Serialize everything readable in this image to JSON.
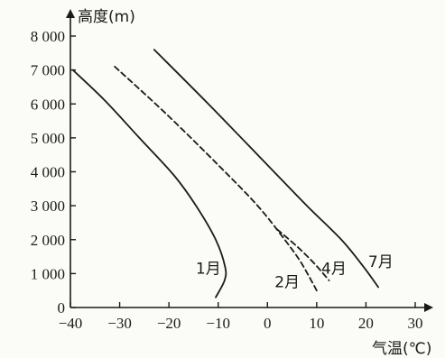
{
  "chart_data": {
    "type": "line",
    "title": "",
    "xlabel": "气温(℃)",
    "ylabel": "高度(m)",
    "xlim": [
      -40,
      30
    ],
    "ylim": [
      0,
      8000
    ],
    "xticks": [
      -40,
      -30,
      -20,
      -10,
      0,
      10,
      20,
      30
    ],
    "xtick_labels": [
      "−40",
      "−30",
      "−20",
      "−10",
      "0",
      "10",
      "20",
      "30"
    ],
    "yticks": [
      0,
      1000,
      2000,
      3000,
      4000,
      5000,
      6000,
      7000,
      8000
    ],
    "ytick_labels": [
      "0",
      "1 000",
      "2 000",
      "3 000",
      "4 000",
      "5 000",
      "6 000",
      "7 000",
      "8 000"
    ],
    "grid": false,
    "series": [
      {
        "name": "1月",
        "style": "solid",
        "color": "#1a1a1a",
        "points": [
          [
            -39.5,
            7000
          ],
          [
            -33,
            6100
          ],
          [
            -26,
            5000
          ],
          [
            -19,
            3900
          ],
          [
            -14.5,
            3000
          ],
          [
            -10.5,
            2000
          ],
          [
            -8.6,
            1200
          ],
          [
            -8.7,
            800
          ],
          [
            -10.5,
            300
          ]
        ]
      },
      {
        "name": "2月",
        "style": "dashed",
        "color": "#1a1a1a",
        "points": [
          [
            -31,
            7100
          ],
          [
            -20.5,
            5700
          ],
          [
            -10,
            4200
          ],
          [
            -2,
            3000
          ],
          [
            3.5,
            2000
          ],
          [
            6.5,
            1400
          ],
          [
            8.5,
            900
          ],
          [
            10,
            500
          ]
        ]
      },
      {
        "name": "4月",
        "style": "dashed",
        "color": "#1a1a1a",
        "points": [
          [
            2,
            2300
          ],
          [
            6,
            1800
          ],
          [
            9.5,
            1300
          ],
          [
            12.5,
            800
          ]
        ]
      },
      {
        "name": "7月",
        "style": "solid",
        "color": "#1a1a1a",
        "points": [
          [
            -23,
            7600
          ],
          [
            -12,
            6000
          ],
          [
            0,
            4200
          ],
          [
            8,
            3000
          ],
          [
            15,
            2000
          ],
          [
            19.5,
            1200
          ],
          [
            22.5,
            600
          ]
        ]
      }
    ],
    "series_labels": [
      {
        "text": "1月",
        "x": -12,
        "y": 1000
      },
      {
        "text": "2月",
        "x": 4,
        "y": 600
      },
      {
        "text": "4月",
        "x": 13.5,
        "y": 1000
      },
      {
        "text": "7月",
        "x": 23,
        "y": 1200
      }
    ]
  }
}
